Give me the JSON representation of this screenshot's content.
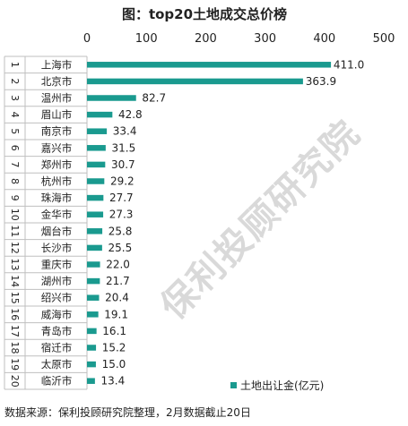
{
  "chart_data": {
    "type": "bar",
    "orientation": "horizontal",
    "title": "图：top20土地成交总价榜",
    "ranks": [
      "1",
      "2",
      "3",
      "4",
      "5",
      "6",
      "7",
      "8",
      "9",
      "10",
      "11",
      "12",
      "13",
      "14",
      "15",
      "16",
      "17",
      "18",
      "19",
      "20"
    ],
    "categories": [
      "上海市",
      "北京市",
      "温州市",
      "眉山市",
      "南京市",
      "嘉兴市",
      "郑州市",
      "杭州市",
      "珠海市",
      "金华市",
      "烟台市",
      "长沙市",
      "重庆市",
      "湖州市",
      "绍兴市",
      "威海市",
      "青岛市",
      "宿迁市",
      "太原市",
      "临沂市"
    ],
    "series": [
      {
        "name": "土地出让金(亿元)",
        "values": [
          411.0,
          363.9,
          82.7,
          42.8,
          33.4,
          31.5,
          30.7,
          29.2,
          27.7,
          27.3,
          25.8,
          25.5,
          22.0,
          21.7,
          20.4,
          19.1,
          16.1,
          15.2,
          15.0,
          13.4
        ],
        "value_labels": [
          "411.0",
          "363.9",
          "82.7",
          "42.8",
          "33.4",
          "31.5",
          "30.7",
          "29.2",
          "27.7",
          "27.3",
          "25.8",
          "25.5",
          "22.0",
          "21.7",
          "20.4",
          "19.1",
          "16.1",
          "15.2",
          "15.0",
          "13.4"
        ]
      }
    ],
    "x_ticks": [
      "0",
      "100",
      "200",
      "300",
      "400",
      "500"
    ],
    "xlim": [
      0,
      500
    ],
    "axis_position": "top",
    "grid": false,
    "legend_position": "bottom-right",
    "bar_color": "#1a9a8f",
    "source": "数据来源：保利投顾研究院整理，2月数据截止20日",
    "watermark": "保利投顾研究院"
  }
}
